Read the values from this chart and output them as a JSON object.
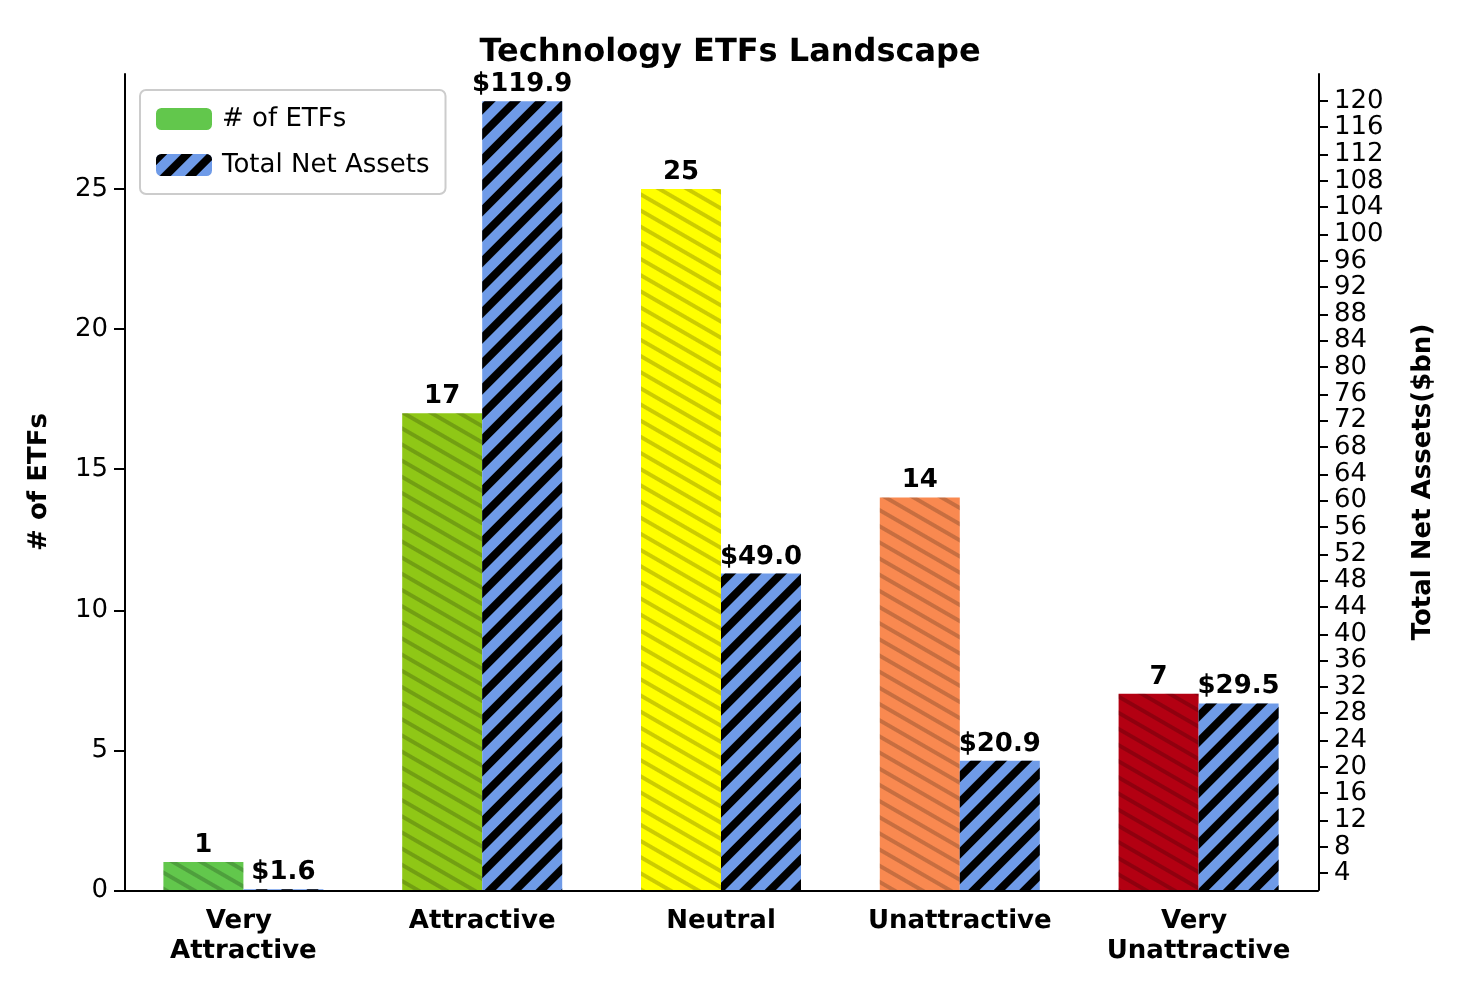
{
  "chart_data": {
    "type": "bar",
    "title": "Technology ETFs Landscape",
    "ylabel": "# of ETFs",
    "y2label": "Total Net Assets($bn)",
    "categories": [
      "Very Attractive",
      "Attractive",
      "Neutral",
      "Unattractive",
      "Very Unattractive"
    ],
    "series": [
      {
        "name": "# of ETFs",
        "colors": [
          "#62c74c",
          "#8fc716",
          "#ffff00",
          "#f98950",
          "#b30012"
        ],
        "values": [
          1,
          17,
          25,
          14,
          7
        ],
        "value_labels": [
          "1",
          "17",
          "25",
          "14",
          "7"
        ]
      },
      {
        "name": "Total Net Assets",
        "color": "#6f9be8",
        "axis": "y2",
        "values": [
          1.6,
          119.9,
          49.0,
          20.9,
          29.5
        ],
        "value_labels": [
          "$1.6",
          "$119.9",
          "$49.0",
          "$20.9",
          "$29.5"
        ]
      }
    ],
    "ylim": [
      0,
      29.1
    ],
    "yticks": [
      0,
      5,
      10,
      15,
      20,
      25
    ],
    "y2lim": [
      1.5,
      124
    ],
    "y2ticks": [
      4,
      8,
      12,
      16,
      20,
      24,
      28,
      32,
      36,
      40,
      44,
      48,
      52,
      56,
      60,
      64,
      68,
      72,
      76,
      80,
      84,
      88,
      92,
      96,
      100,
      104,
      108,
      112,
      116,
      120
    ],
    "grid": false,
    "legend": "top left"
  }
}
